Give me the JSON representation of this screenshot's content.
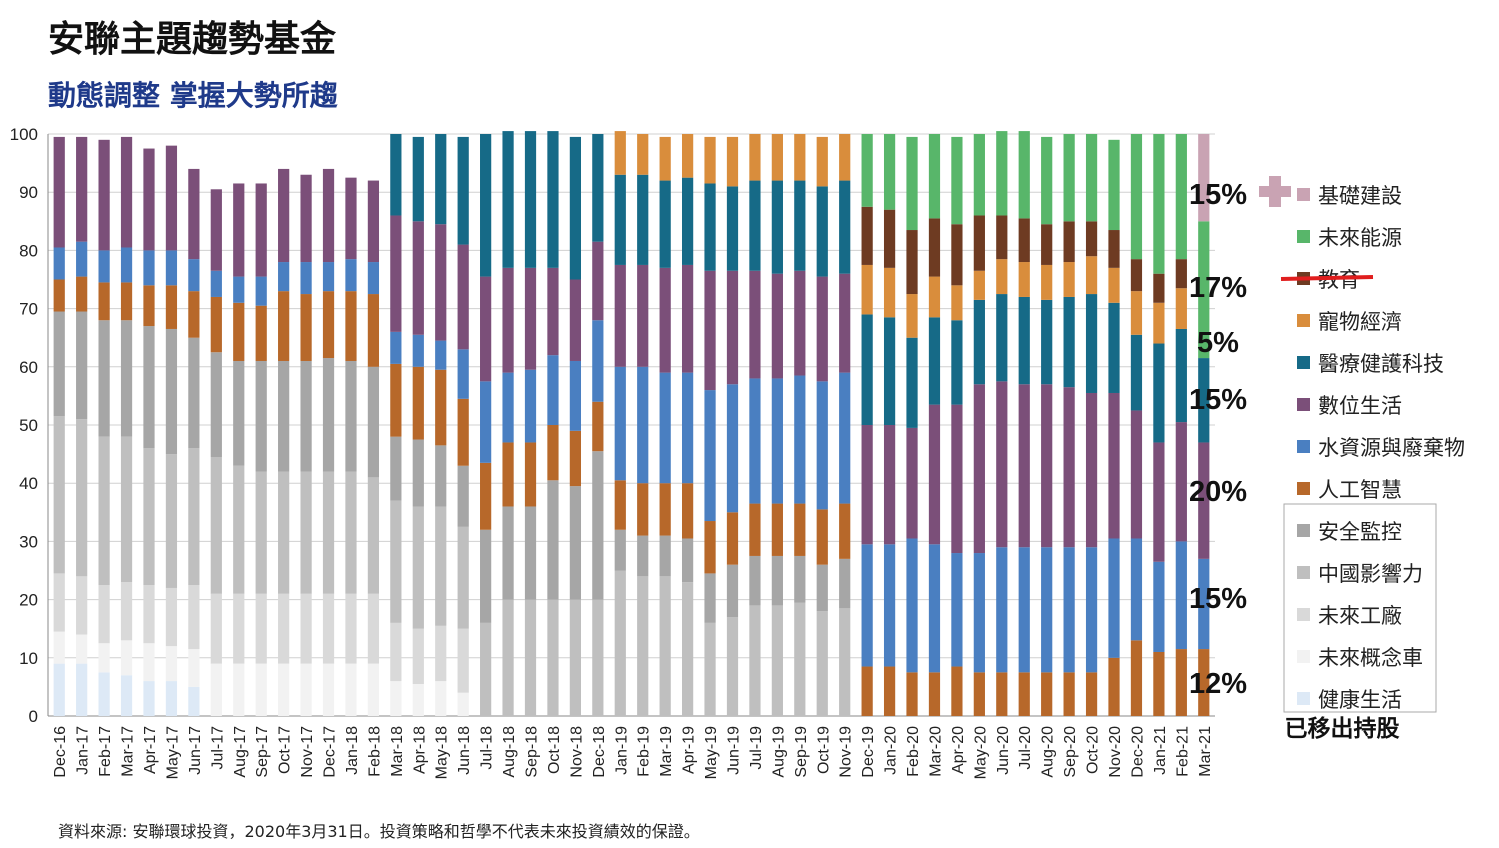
{
  "title": "安聯主題趨勢基金",
  "subtitle": "動態調整  掌握大勢所趨",
  "source": "資料來源: 安聯環球投資，2020年3月31日。投資策略和哲學不代表未來投資績效的保證。",
  "removed_label": "已移出持股",
  "chart_data": {
    "type": "bar",
    "stacked": true,
    "title": "",
    "xlabel": "",
    "ylabel": "",
    "ylim": [
      0,
      100
    ],
    "yticks": [
      0,
      10,
      20,
      30,
      40,
      50,
      60,
      70,
      80,
      90,
      100
    ],
    "categories": [
      "Dec-16",
      "Jan-17",
      "Feb-17",
      "Mar-17",
      "Apr-17",
      "May-17",
      "Jun-17",
      "Jul-17",
      "Aug-17",
      "Sep-17",
      "Oct-17",
      "Nov-17",
      "Dec-17",
      "Jan-18",
      "Feb-18",
      "Mar-18",
      "Apr-18",
      "May-18",
      "Jun-18",
      "Jul-18",
      "Aug-18",
      "Sep-18",
      "Oct-18",
      "Nov-18",
      "Dec-18",
      "Jan-19",
      "Feb-19",
      "Mar-19",
      "Apr-19",
      "May-19",
      "Jun-19",
      "Jul-19",
      "Aug-19",
      "Sep-19",
      "Oct-19",
      "Nov-19",
      "Dec-19",
      "Jan-20",
      "Feb-20",
      "Mar-20",
      "Apr-20",
      "May-20",
      "Jun-20",
      "Jul-20",
      "Aug-20",
      "Sep-20",
      "Oct-20",
      "Nov-20",
      "Dec-20",
      "Jan-21",
      "Feb-21",
      "Mar-21"
    ],
    "series": [
      {
        "name": "健康生活",
        "color": "#dde9f6",
        "values": [
          9,
          9,
          7.5,
          7,
          6,
          6,
          5,
          0,
          0,
          0,
          0,
          0,
          0,
          0,
          0,
          0,
          0,
          0,
          0,
          0,
          0,
          0,
          0,
          0,
          0,
          0,
          0,
          0,
          0,
          0,
          0,
          0,
          0,
          0,
          0,
          0,
          0,
          0,
          0,
          0,
          0,
          0,
          0,
          0,
          0,
          0,
          0,
          0,
          0,
          0,
          0,
          0
        ]
      },
      {
        "name": "未來概念車",
        "color": "#f2f2f2",
        "values": [
          5.5,
          5,
          5,
          6,
          6.5,
          6,
          6.5,
          9,
          9,
          9,
          9,
          9,
          9,
          9,
          9,
          6,
          5.5,
          6,
          4,
          0,
          0,
          0,
          0,
          0,
          0,
          0,
          0,
          0,
          0,
          0,
          0,
          0,
          0,
          0,
          0,
          0,
          0,
          0,
          0,
          0,
          0,
          0,
          0,
          0,
          0,
          0,
          0,
          0,
          0,
          0,
          0,
          0
        ]
      },
      {
        "name": "未來工廠",
        "color": "#d9d9d9",
        "values": [
          10,
          10,
          10,
          10,
          10,
          10,
          11,
          12,
          12,
          12,
          12,
          12,
          12,
          12,
          12,
          10,
          9.5,
          9.5,
          11,
          0,
          0,
          0,
          0,
          0,
          0,
          0,
          0,
          0,
          0,
          0,
          0,
          0,
          0,
          0,
          0,
          0,
          0,
          0,
          0,
          0,
          0,
          0,
          0,
          0,
          0,
          0,
          0,
          0,
          0,
          0,
          0,
          0
        ]
      },
      {
        "name": "中國影響力",
        "color": "#bfbfbf",
        "values": [
          27,
          27,
          25.5,
          25,
          23.5,
          23,
          23.5,
          23.5,
          22,
          21,
          21,
          21,
          21,
          21,
          20,
          21,
          21,
          20.5,
          17.5,
          16,
          20,
          20,
          20,
          20,
          20,
          25,
          24,
          24,
          23,
          16,
          17,
          19,
          19,
          19.5,
          18,
          18.5,
          0,
          0,
          0,
          0,
          0,
          0,
          0,
          0,
          0,
          0,
          0,
          0,
          0,
          0,
          0,
          0
        ]
      },
      {
        "name": "安全監控",
        "color": "#a6a6a6",
        "values": [
          18,
          18.5,
          20,
          20,
          21,
          21.5,
          19,
          18,
          18,
          19,
          19,
          19,
          19.5,
          19,
          19,
          11,
          11.5,
          10.5,
          10.5,
          16,
          16,
          16,
          20.5,
          19.5,
          25.5,
          7,
          7,
          7,
          7.5,
          8.5,
          9,
          8.5,
          8.5,
          8,
          8,
          8.5,
          0,
          0,
          0,
          0,
          0,
          0,
          0,
          0,
          0,
          0,
          0,
          0,
          0,
          0,
          0,
          0
        ]
      },
      {
        "name": "人工智慧",
        "color": "#b7682a",
        "values": [
          5.5,
          6,
          6.5,
          6.5,
          7,
          7.5,
          8,
          9.5,
          10,
          9.5,
          12,
          11.5,
          11.5,
          12,
          12.5,
          12.5,
          12.5,
          13,
          11.5,
          11.5,
          11,
          11,
          9.5,
          9.5,
          8.5,
          8.5,
          9,
          9,
          9.5,
          9,
          9,
          9,
          9,
          9,
          9.5,
          9.5,
          8.5,
          8.5,
          7.5,
          7.5,
          8.5,
          7.5,
          7.5,
          7.5,
          7.5,
          7.5,
          7.5,
          10,
          13,
          11,
          11.5,
          11.5
        ]
      },
      {
        "name": "水資源與廢棄物",
        "color": "#4a7fc1",
        "values": [
          5.5,
          6,
          5.5,
          6,
          6,
          6,
          5.5,
          4.5,
          4.5,
          5,
          5,
          5.5,
          5,
          5.5,
          5.5,
          5.5,
          5.5,
          5,
          8.5,
          14,
          12,
          12.5,
          12,
          12,
          14,
          19.5,
          20,
          19,
          19,
          22.5,
          22,
          21.5,
          21.5,
          22,
          22,
          22.5,
          21,
          21,
          23,
          22,
          19.5,
          20.5,
          21.5,
          21.5,
          21.5,
          21.5,
          21.5,
          20.5,
          17.5,
          15.5,
          18.5,
          15.5
        ]
      },
      {
        "name": "數位生活",
        "color": "#7b4f79",
        "values": [
          19,
          18,
          19,
          19,
          17.5,
          18,
          15.5,
          14,
          16,
          16,
          16,
          15,
          16,
          14,
          14,
          20,
          19.5,
          20,
          18,
          18,
          18,
          17.5,
          15,
          14,
          13.5,
          17.5,
          17.5,
          18,
          18.5,
          20.5,
          19.5,
          18.5,
          18,
          18,
          18,
          17,
          20.5,
          20.5,
          19,
          24,
          25.5,
          29,
          28.5,
          28,
          28,
          27.5,
          26.5,
          25,
          22,
          20.5,
          20.5,
          20
        ]
      },
      {
        "name": "醫療健護科技",
        "color": "#166a87",
        "values": [
          0,
          0,
          0,
          0,
          0,
          0,
          0,
          0,
          0,
          0,
          0,
          0,
          0,
          0,
          0,
          14,
          14.5,
          15.5,
          18.5,
          24.5,
          23.5,
          23.5,
          23.5,
          24.5,
          18.5,
          15.5,
          15.5,
          15,
          15,
          15,
          14.5,
          15.5,
          16,
          15.5,
          15.5,
          16,
          19,
          18.5,
          15.5,
          15,
          14.5,
          14.5,
          15,
          15,
          14.5,
          15.5,
          17,
          15.5,
          13,
          17,
          16,
          14.5
        ]
      },
      {
        "name": "寵物經濟",
        "color": "#d98d3c",
        "values": [
          0,
          0,
          0,
          0,
          0,
          0,
          0,
          0,
          0,
          0,
          0,
          0,
          0,
          0,
          0,
          0,
          0,
          0,
          0,
          0,
          0,
          0,
          0,
          0,
          0,
          7.5,
          7,
          7.5,
          7.5,
          8,
          8.5,
          8,
          8,
          8,
          8.5,
          8,
          8.5,
          8.5,
          7.5,
          7,
          6,
          5,
          6,
          6,
          6,
          6,
          6.5,
          6,
          7.5,
          7,
          7,
          0
        ]
      },
      {
        "name": "教育",
        "color": "#6e3b22",
        "values": [
          0,
          0,
          0,
          0,
          0,
          0,
          0,
          0,
          0,
          0,
          0,
          0,
          0,
          0,
          0,
          0,
          0,
          0,
          0,
          0,
          0,
          0,
          0,
          0,
          0,
          0,
          0,
          0,
          0,
          0,
          0,
          0,
          0,
          0,
          0,
          0,
          10,
          10,
          11,
          10,
          10.5,
          9.5,
          7.5,
          7.5,
          7,
          7,
          6,
          6.5,
          5.5,
          5,
          5,
          0
        ]
      },
      {
        "name": "未來能源",
        "color": "#58b66a",
        "values": [
          0,
          0,
          0,
          0,
          0,
          0,
          0,
          0,
          0,
          0,
          0,
          0,
          0,
          0,
          0,
          0,
          0,
          0,
          0,
          0,
          0,
          0,
          0,
          0,
          0,
          0,
          0,
          0,
          0,
          0,
          0,
          0,
          0,
          0,
          0,
          0,
          12.5,
          13,
          16,
          14.5,
          15,
          14,
          14.5,
          15,
          15,
          15,
          15,
          15.5,
          21.5,
          24,
          21.5,
          23.5
        ]
      },
      {
        "name": "基礎建設",
        "color": "#c9a3b3",
        "values": [
          0,
          0,
          0,
          0,
          0,
          0,
          0,
          0,
          0,
          0,
          0,
          0,
          0,
          0,
          0,
          0,
          0,
          0,
          0,
          0,
          0,
          0,
          0,
          0,
          0,
          0,
          0,
          0,
          0,
          0,
          0,
          0,
          0,
          0,
          0,
          0,
          0,
          0,
          0,
          0,
          0,
          0,
          0,
          0,
          0,
          0,
          0,
          0,
          0,
          0,
          0,
          15
        ]
      }
    ],
    "legend": [
      "基礎建設",
      "未來能源",
      "教育",
      "寵物經濟",
      "醫療健護科技",
      "數位生活",
      "水資源與廢棄物",
      "人工智慧",
      "安全監控",
      "中國影響力",
      "未來工廠",
      "未來概念車",
      "健康生活"
    ],
    "legend_position": "right",
    "struck_legend_item": "教育",
    "annotations": [
      "15%",
      "17%",
      "5%",
      "15%",
      "20%",
      "15%",
      "12%"
    ]
  }
}
